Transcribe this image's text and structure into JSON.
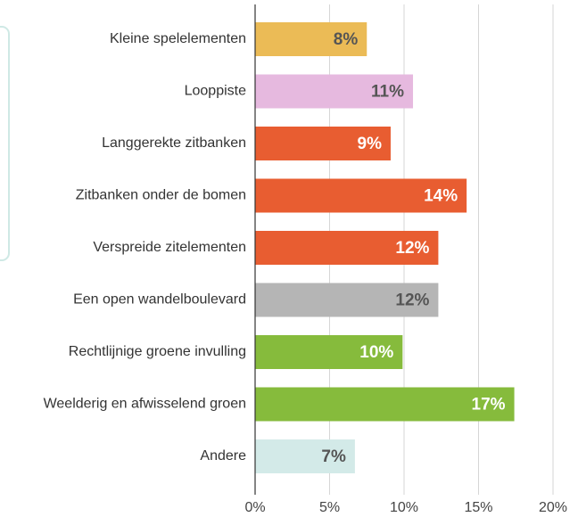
{
  "chart_data": {
    "type": "barh",
    "categories": [
      "Kleine spelelementen",
      "Looppiste",
      "Langgerekte zitbanken",
      "Zitbanken onder de bomen",
      "Verspreide zitelementen",
      "Een open wandelboulevard",
      "Rechtlijnige groene invulling",
      "Weelderig en afwisselend groen",
      "Andere"
    ],
    "values": [
      7.5,
      10.6,
      9.1,
      14.2,
      12.3,
      12.3,
      9.9,
      17.4,
      6.7
    ],
    "value_labels": [
      "8%",
      "11%",
      "9%",
      "14%",
      "12%",
      "12%",
      "10%",
      "17%",
      "7%"
    ],
    "colors": [
      "#ebbb56",
      "#e6b9df",
      "#e85d31",
      "#e85d31",
      "#e85d31",
      "#b5b5b5",
      "#86bb3c",
      "#86bb3c",
      "#d3eae8"
    ],
    "xlim": [
      0,
      20
    ],
    "xticks": [
      {
        "value": 0,
        "label": "0%"
      },
      {
        "value": 5,
        "label": "5%"
      },
      {
        "value": 10,
        "label": "10%"
      },
      {
        "value": 15,
        "label": "15%"
      },
      {
        "value": 20,
        "label": "20%"
      }
    ],
    "grid": true
  }
}
